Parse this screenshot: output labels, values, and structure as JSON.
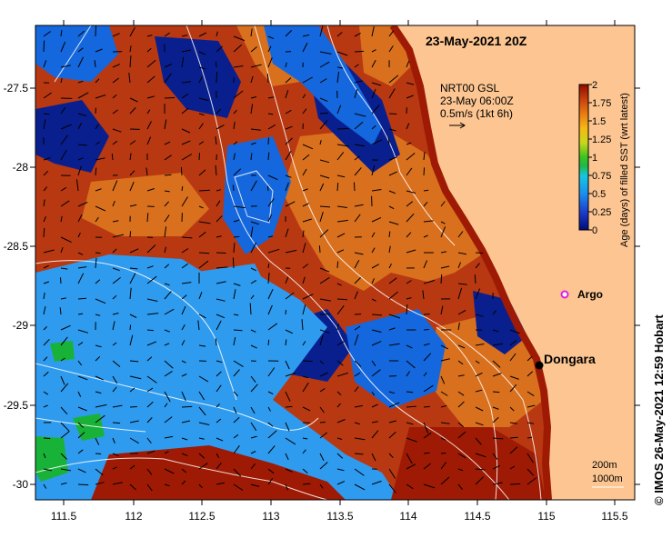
{
  "title": "23-May-2021 20Z",
  "current": {
    "product": "NRT00 GSL",
    "time": "23-May 06:00Z",
    "scale_text": "0.5m/s (1kt 6h)"
  },
  "colorbar": {
    "label": "Age (days) of filled SST (wrt latest)",
    "ticks": [
      "0",
      "0.25",
      "0.5",
      "0.75",
      "1",
      "1.25",
      "1.5",
      "1.75",
      "2"
    ],
    "range": [
      0,
      2
    ]
  },
  "axes": {
    "x_ticks": [
      "111.5",
      "112",
      "112.5",
      "113",
      "113.5",
      "114",
      "114.5",
      "115",
      "115.5"
    ],
    "y_ticks": [
      "-27.5",
      "-28",
      "-28.5",
      "-29",
      "-29.5",
      "-30"
    ]
  },
  "places": {
    "dongara": "Dongara",
    "argo": "Argo"
  },
  "contours": {
    "c200": "200m",
    "c1000": "1000m"
  },
  "credit": "© IMOS 26-May-2021 12:59 Hobart",
  "colors": {
    "land": "#fcc591",
    "dark_red": "#9e1a04",
    "red_brown": "#b83812",
    "orange": "#d9701e",
    "light_blue": "#2e9bef",
    "blue": "#1467dd",
    "navy": "#0a1f8e",
    "green": "#19b239"
  }
}
